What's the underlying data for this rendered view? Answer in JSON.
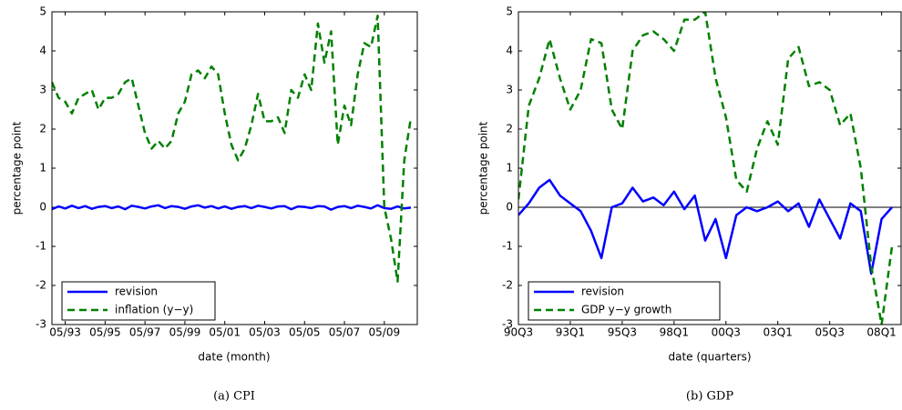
{
  "chart_data": [
    {
      "type": "line",
      "caption": "(a)  CPI",
      "xlabel": "date (month)",
      "ylabel": "percentage point",
      "categories": [
        null,
        null,
        "05/93",
        null,
        null,
        null,
        null,
        null,
        "05/95",
        null,
        null,
        null,
        null,
        null,
        "05/97",
        null,
        null,
        null,
        null,
        null,
        "05/99",
        null,
        null,
        null,
        null,
        null,
        "05/01",
        null,
        null,
        null,
        null,
        null,
        "05/03",
        null,
        null,
        null,
        null,
        null,
        "05/05",
        null,
        null,
        null,
        null,
        null,
        "05/07",
        null,
        null,
        null,
        null,
        null,
        "05/09",
        null,
        null,
        null,
        null
      ],
      "ylim": [
        -3,
        5
      ],
      "yticks": [
        -3,
        -2,
        -1,
        0,
        1,
        2,
        3,
        4,
        5
      ],
      "zero_line": false,
      "legend": "lower left",
      "series": [
        {
          "name": "revision",
          "color": "#0000ff",
          "dash": "solid",
          "values": [
            -0.05,
            0.02,
            -0.03,
            0.04,
            -0.02,
            0.03,
            -0.04,
            0.01,
            0.03,
            -0.02,
            0.02,
            -0.05,
            0.04,
            0.01,
            -0.03,
            0.02,
            0.05,
            -0.02,
            0.03,
            0.01,
            -0.04,
            0.02,
            0.05,
            -0.01,
            0.03,
            -0.03,
            0.02,
            -0.04,
            0.01,
            0.03,
            -0.02,
            0.04,
            0.01,
            -0.03,
            0.02,
            0.03,
            -0.05,
            0.02,
            0.01,
            -0.02,
            0.03,
            0.02,
            -0.06,
            0.01,
            0.03,
            -0.02,
            0.04,
            0.01,
            -0.03,
            0.05,
            -0.02,
            -0.04,
            0.02,
            -0.03,
            -0.01
          ]
        },
        {
          "name": "inflation (y−y)",
          "color": "#008000",
          "dash": "dashed",
          "values": [
            3.2,
            2.8,
            2.7,
            2.4,
            2.8,
            2.9,
            3.0,
            2.5,
            2.8,
            2.8,
            2.9,
            3.2,
            3.3,
            2.6,
            1.9,
            1.5,
            1.7,
            1.5,
            1.7,
            2.4,
            2.7,
            3.4,
            3.5,
            3.3,
            3.6,
            3.4,
            2.4,
            1.6,
            1.2,
            1.5,
            2.1,
            2.9,
            2.2,
            2.2,
            2.3,
            1.9,
            3.0,
            2.8,
            3.4,
            3.0,
            4.7,
            3.7,
            4.5,
            1.6,
            2.6,
            2.1,
            3.4,
            4.2,
            4.1,
            4.9,
            0.0,
            -0.8,
            -1.9,
            1.2,
            2.3
          ]
        }
      ]
    },
    {
      "type": "line",
      "caption": "(b)  GDP",
      "xlabel": "date (quarters)",
      "ylabel": "percentage point",
      "categories": [
        "90Q3",
        null,
        null,
        null,
        null,
        "93Q1",
        null,
        null,
        null,
        null,
        "95Q3",
        null,
        null,
        null,
        null,
        "98Q1",
        null,
        null,
        null,
        null,
        "00Q3",
        null,
        null,
        null,
        null,
        "03Q1",
        null,
        null,
        null,
        null,
        "05Q3",
        null,
        null,
        null,
        null,
        "08Q1",
        null
      ],
      "ylim": [
        -3,
        5
      ],
      "yticks": [
        -3,
        -2,
        -1,
        0,
        1,
        2,
        3,
        4,
        5
      ],
      "zero_line": true,
      "legend": "lower left",
      "series": [
        {
          "name": "revision",
          "color": "#0000ff",
          "dash": "solid",
          "values": [
            -0.2,
            0.1,
            0.5,
            0.7,
            0.3,
            0.1,
            -0.1,
            -0.6,
            -1.3,
            0.0,
            0.1,
            0.5,
            0.15,
            0.25,
            0.05,
            0.4,
            -0.05,
            0.3,
            -0.85,
            -0.3,
            -1.3,
            -0.2,
            0.0,
            -0.1,
            0.0,
            0.15,
            -0.1,
            0.1,
            -0.5,
            0.2,
            -0.3,
            -0.8,
            0.1,
            -0.1,
            -1.7,
            -0.3,
            0.0
          ]
        },
        {
          "name": "GDP y−y growth",
          "color": "#008000",
          "dash": "dashed",
          "values": [
            0.2,
            2.6,
            3.3,
            4.3,
            3.3,
            2.5,
            3.0,
            4.3,
            4.2,
            2.5,
            2.0,
            4.0,
            4.4,
            4.5,
            4.3,
            4.0,
            4.8,
            4.8,
            5.0,
            3.3,
            2.3,
            0.7,
            0.4,
            1.5,
            2.2,
            1.6,
            3.8,
            4.1,
            3.1,
            3.2,
            3.0,
            2.1,
            2.4,
            1.0,
            -1.5,
            -3.0,
            -1.0
          ]
        }
      ]
    }
  ]
}
